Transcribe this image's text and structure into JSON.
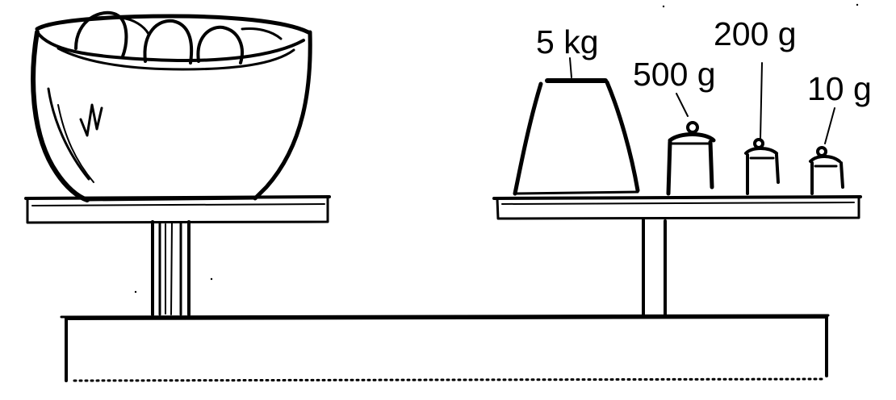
{
  "diagram": {
    "ink_color": "#000000",
    "background": "#ffffff",
    "left_pan": {
      "contents": "bowl-of-eggs",
      "egg_count": 3
    },
    "right_pan": {
      "weights": [
        {
          "label": "5 kg"
        },
        {
          "label": "500 g"
        },
        {
          "label": "200 g"
        },
        {
          "label": "10 g"
        }
      ]
    }
  }
}
